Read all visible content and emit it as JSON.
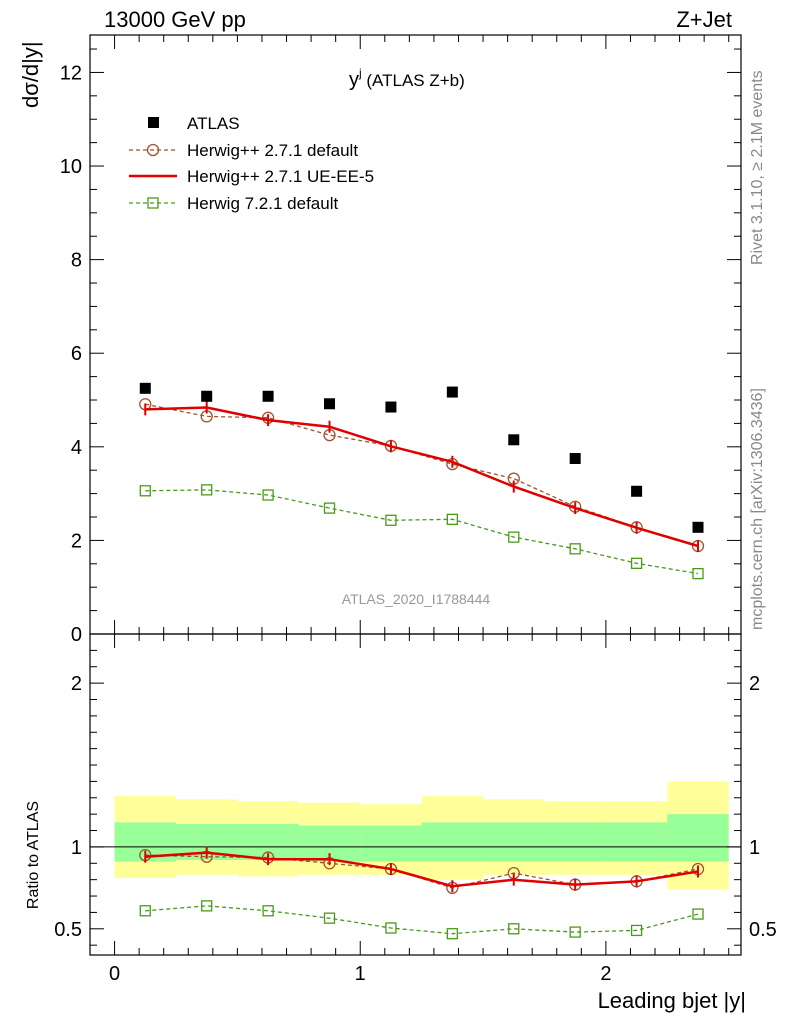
{
  "header": {
    "left_label": "13000 GeV pp",
    "right_label": "Z+Jet"
  },
  "side_labels": {
    "rivet": "Rivet 3.1.10, ≥ 2.1M events",
    "mcplots": "mcplots.cern.ch [arXiv:1306.3436]"
  },
  "chart_data": [
    {
      "type": "scatter",
      "panel": "main",
      "title_main": "y",
      "title_sup": "j",
      "title_rest": " (ATLAS Z+b)",
      "ylabel": "dσ/d|y|",
      "watermark": "ATLAS_2020_I1788444",
      "xlim": [
        -0.1,
        2.55
      ],
      "ylim": [
        0,
        12.8
      ],
      "yticks": [
        0,
        2,
        4,
        6,
        8,
        10,
        12
      ],
      "ytick_labels": [
        "0",
        "2",
        "4",
        "6",
        "8",
        "10",
        "12"
      ],
      "legend_position": "top-left",
      "x": [
        0.125,
        0.375,
        0.625,
        0.875,
        1.125,
        1.375,
        1.625,
        1.875,
        2.125,
        2.375
      ],
      "series": [
        {
          "name": "ATLAS",
          "style": "data",
          "color": "#000000",
          "values": [
            5.25,
            5.08,
            5.08,
            4.92,
            4.85,
            5.17,
            4.15,
            3.75,
            3.05,
            2.28
          ]
        },
        {
          "name": "Herwig++ 2.7.1 default",
          "style": "circle-dashed",
          "color": "#a0522d",
          "values": [
            4.91,
            4.65,
            4.62,
            4.25,
            4.02,
            3.63,
            3.32,
            2.72,
            2.28,
            1.88
          ]
        },
        {
          "name": "Herwig++ 2.7.1 UE-EE-5",
          "style": "solid",
          "color": "#e00000",
          "values": [
            4.8,
            4.84,
            4.57,
            4.43,
            4.01,
            3.68,
            3.15,
            2.69,
            2.27,
            1.88
          ]
        },
        {
          "name": "Herwig 7.2.1 default",
          "style": "square-dashed",
          "color": "#4a9a1a",
          "values": [
            3.06,
            3.08,
            2.97,
            2.69,
            2.43,
            2.45,
            2.07,
            1.82,
            1.51,
            1.29
          ]
        }
      ]
    },
    {
      "type": "line",
      "panel": "ratio",
      "ylabel": "Ratio to ATLAS",
      "xlabel": "Leading bjet |y|",
      "xlim": [
        -0.1,
        2.55
      ],
      "ylim": [
        0.34,
        2.3
      ],
      "xticks": [
        0,
        1,
        2
      ],
      "xtick_labels": [
        "0",
        "1",
        "2"
      ],
      "yticks": [
        0.5,
        1,
        2
      ],
      "ytick_labels": [
        "0.5",
        "1",
        "2"
      ],
      "reference_line": 1,
      "band_edges": [
        0,
        0.25,
        0.5,
        0.75,
        1.0,
        1.25,
        1.5,
        1.75,
        2.0,
        2.25,
        2.5
      ],
      "band_yellow": [
        [
          0.81,
          1.31
        ],
        [
          0.83,
          1.29
        ],
        [
          0.82,
          1.28
        ],
        [
          0.83,
          1.27
        ],
        [
          0.83,
          1.26
        ],
        [
          0.8,
          1.31
        ],
        [
          0.83,
          1.29
        ],
        [
          0.83,
          1.28
        ],
        [
          0.83,
          1.28
        ],
        [
          0.74,
          1.4
        ]
      ],
      "band_green": [
        [
          0.91,
          1.15
        ],
        [
          0.92,
          1.14
        ],
        [
          0.92,
          1.14
        ],
        [
          0.91,
          1.13
        ],
        [
          0.91,
          1.13
        ],
        [
          0.91,
          1.15
        ],
        [
          0.91,
          1.15
        ],
        [
          0.91,
          1.15
        ],
        [
          0.91,
          1.15
        ],
        [
          0.91,
          1.2
        ]
      ],
      "x": [
        0.125,
        0.375,
        0.625,
        0.875,
        1.125,
        1.375,
        1.625,
        1.875,
        2.125,
        2.375
      ],
      "series": [
        {
          "name": "Herwig++ 2.7.1 default",
          "style": "circle-dashed",
          "color": "#a0522d",
          "values": [
            0.95,
            0.94,
            0.935,
            0.9,
            0.865,
            0.75,
            0.84,
            0.77,
            0.79,
            0.865
          ]
        },
        {
          "name": "Herwig++ 2.7.1 UE-EE-5",
          "style": "solid",
          "color": "#e00000",
          "values": [
            0.94,
            0.965,
            0.925,
            0.925,
            0.865,
            0.76,
            0.8,
            0.77,
            0.79,
            0.85
          ]
        },
        {
          "name": "Herwig 7.2.1 default",
          "style": "square-dashed",
          "color": "#4a9a1a",
          "values": [
            0.61,
            0.64,
            0.61,
            0.565,
            0.505,
            0.47,
            0.5,
            0.48,
            0.49,
            0.59
          ]
        }
      ]
    }
  ]
}
